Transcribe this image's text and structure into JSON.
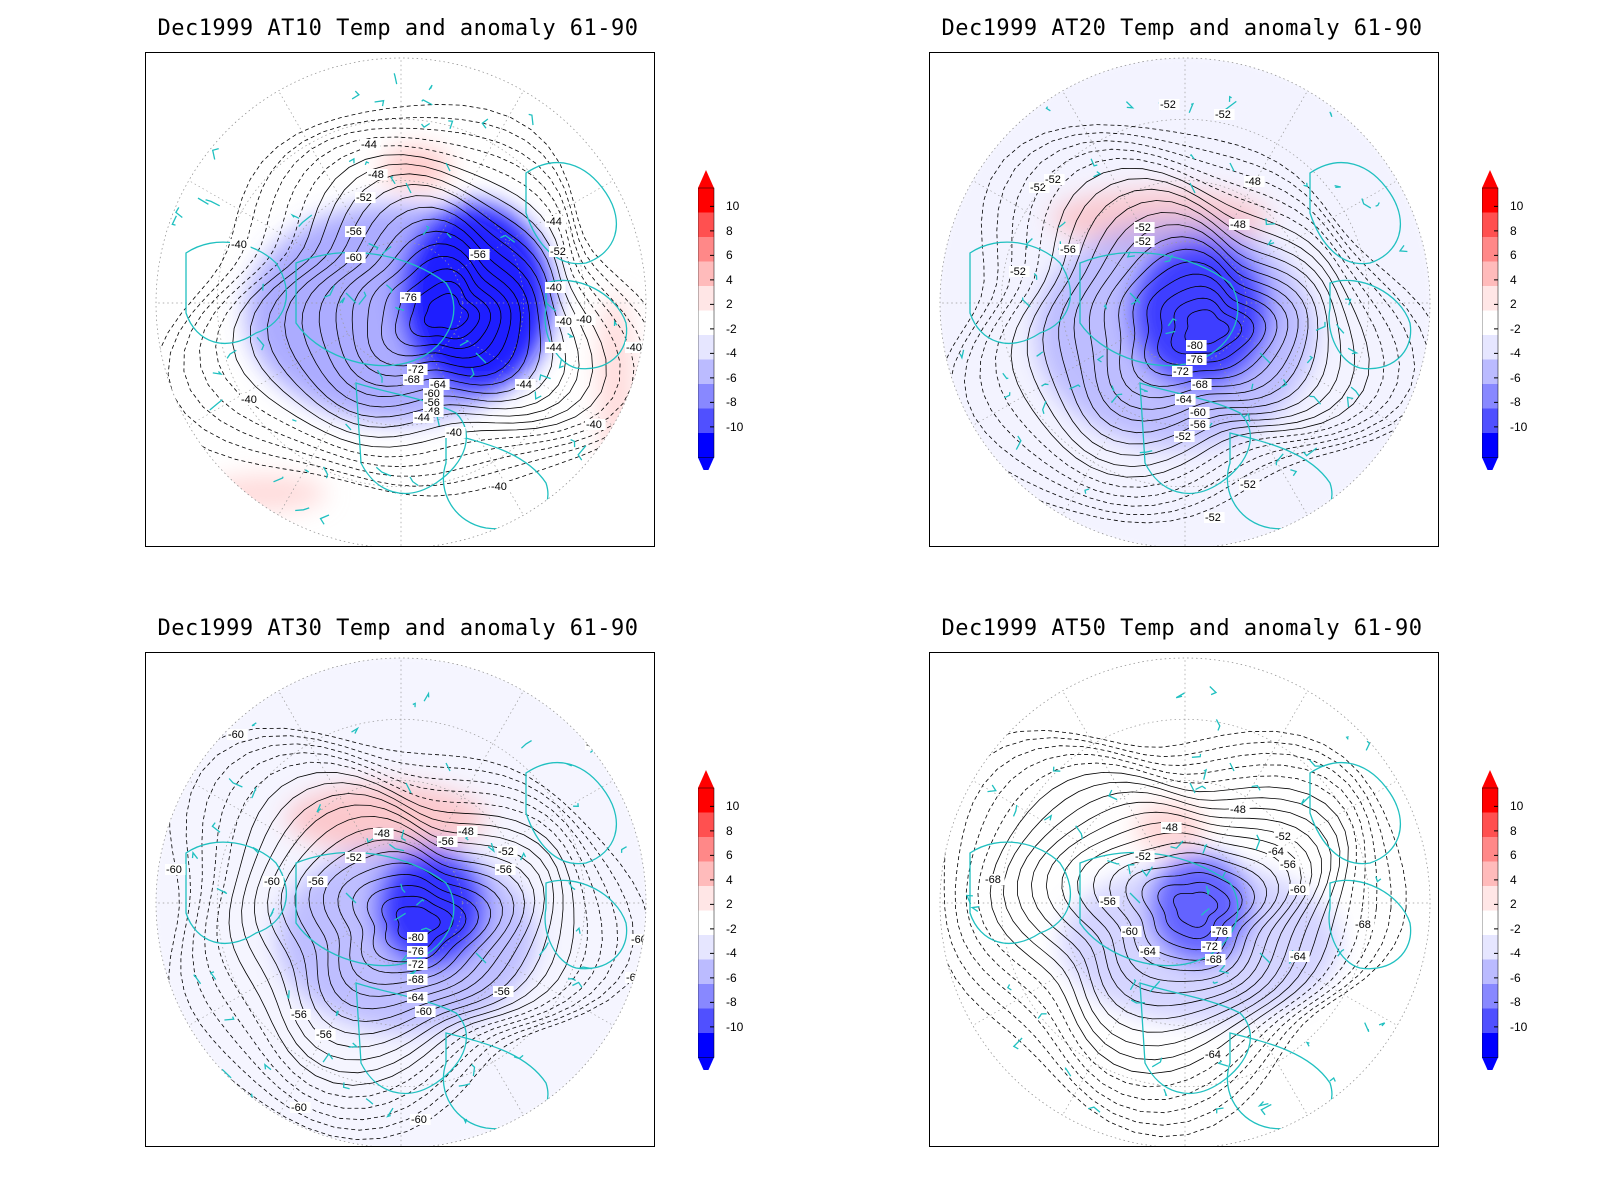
{
  "panels": [
    {
      "title": "Dec1999 AT10 Temp and anomaly 61-90",
      "id": "at10",
      "labels": [
        "-44",
        "-48",
        "-52",
        "-56",
        "-60",
        "-76",
        "-40",
        "-44",
        "-52",
        "-56",
        "-40",
        "-40",
        "-44",
        "-72",
        "-68",
        "-64",
        "-60",
        "-56",
        "-48",
        "-44",
        "-40",
        "-40",
        "-40",
        "-40",
        "-44",
        "-40",
        "-40"
      ]
    },
    {
      "title": "Dec1999 AT20 Temp and anomaly 61-90",
      "id": "at20",
      "labels": [
        "-52",
        "-52",
        "-52",
        "-52",
        "-48",
        "-48",
        "-52",
        "-52",
        "-56",
        "-52",
        "-80",
        "-76",
        "-72",
        "-68",
        "-64",
        "-60",
        "-56",
        "-52",
        "-52",
        "-52"
      ]
    },
    {
      "title": "Dec1999 AT30 Temp and anomaly 61-90",
      "id": "at30",
      "labels": [
        "-60",
        "-60",
        "-60",
        "-48",
        "-48",
        "-52",
        "-56",
        "-52",
        "-60",
        "-56",
        "-56",
        "-80",
        "-76",
        "-72",
        "-68",
        "-64",
        "-60",
        "-56",
        "-56",
        "-56",
        "-60",
        "-60",
        "-60",
        "-60"
      ]
    },
    {
      "title": "Dec1999 AT50 Temp and anomaly 61-90",
      "id": "at50",
      "labels": [
        "-68",
        "-48",
        "-48",
        "-52",
        "-52",
        "-64",
        "-56",
        "-56",
        "-60",
        "-60",
        "-64",
        "-76",
        "-72",
        "-68",
        "-64",
        "-68",
        "-64"
      ]
    }
  ],
  "colorbar": {
    "ticks": [
      "10",
      "8",
      "6",
      "4",
      "2",
      "-2",
      "-4",
      "-6",
      "-8",
      "-10"
    ],
    "colors": [
      "#ff0000",
      "#ff5050",
      "#ff8888",
      "#ffbbbb",
      "#ffe6e6",
      "#ffffff",
      "#e6e6ff",
      "#bbbbff",
      "#8888ff",
      "#5050ff",
      "#0000ff"
    ]
  },
  "style": {
    "coast_color": "#20c0c0",
    "contour_color": "#000000",
    "grid_color": "#999999"
  }
}
